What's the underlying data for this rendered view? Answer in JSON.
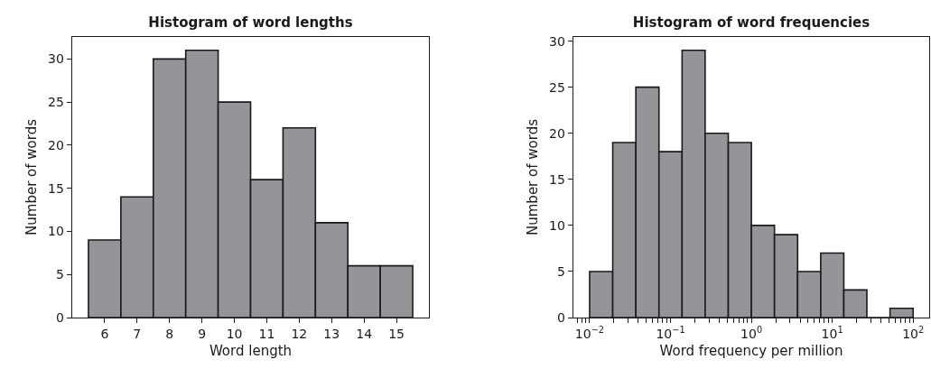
{
  "chart_data": [
    {
      "type": "histogram",
      "title": "Histogram of word lengths",
      "xlabel": "Word length",
      "ylabel": "Number of words",
      "bins": [
        5.5,
        6.5,
        7.5,
        8.5,
        9.5,
        10.5,
        11.5,
        12.5,
        13.5,
        14.5,
        15.5
      ],
      "values": [
        9,
        14,
        30,
        31,
        25,
        16,
        22,
        11,
        6,
        6
      ],
      "color": "#939598",
      "xlim": [
        5,
        16
      ],
      "xticks": [
        6,
        7,
        8,
        9,
        10,
        11,
        12,
        13,
        14,
        15
      ],
      "ylim": [
        0,
        32.55
      ],
      "yticks": [
        0,
        5,
        10,
        15,
        20,
        25,
        30
      ]
    },
    {
      "type": "histogram",
      "title": "Histogram of word frequencies",
      "xlabel": "Word frequency per million",
      "ylabel": "Number of words",
      "bins": [
        0.01,
        0.0193,
        0.0373,
        0.072,
        0.139,
        0.268,
        0.518,
        1,
        1.93,
        3.73,
        7.2,
        13.9,
        26.8,
        51.8,
        100
      ],
      "values": [
        5,
        19,
        25,
        18,
        29,
        20,
        19,
        10,
        9,
        5,
        7,
        3,
        0,
        1
      ],
      "color": "#939598",
      "log": "x",
      "xlim": [
        0.0063,
        158
      ],
      "xticks": [
        {
          "value": 0.007,
          "label": null
        },
        {
          "value": 0.008,
          "label": null
        },
        {
          "value": 0.009,
          "label": null
        },
        {
          "value": 0.01,
          "label": "10$^{−2}$"
        },
        {
          "value": 0.02,
          "label": null
        },
        {
          "value": 0.03,
          "label": null
        },
        {
          "value": 0.04,
          "label": null
        },
        {
          "value": 0.05,
          "label": null
        },
        {
          "value": 0.06,
          "label": null
        },
        {
          "value": 0.07,
          "label": null
        },
        {
          "value": 0.08,
          "label": null
        },
        {
          "value": 0.09,
          "label": null
        },
        {
          "value": 0.1,
          "label": "10$^{−1}$"
        },
        {
          "value": 0.2,
          "label": null
        },
        {
          "value": 0.3,
          "label": null
        },
        {
          "value": 0.4,
          "label": null
        },
        {
          "value": 0.5,
          "label": null
        },
        {
          "value": 0.6,
          "label": null
        },
        {
          "value": 0.7,
          "label": null
        },
        {
          "value": 0.8,
          "label": null
        },
        {
          "value": 0.9,
          "label": null
        },
        {
          "value": 1,
          "label": "10$^{0}$"
        },
        {
          "value": 2,
          "label": null
        },
        {
          "value": 3,
          "label": null
        },
        {
          "value": 4,
          "label": null
        },
        {
          "value": 5,
          "label": null
        },
        {
          "value": 6,
          "label": null
        },
        {
          "value": 7,
          "label": null
        },
        {
          "value": 8,
          "label": null
        },
        {
          "value": 9,
          "label": null
        },
        {
          "value": 10,
          "label": "10$^{1}$"
        },
        {
          "value": 20,
          "label": null
        },
        {
          "value": 30,
          "label": null
        },
        {
          "value": 40,
          "label": null
        },
        {
          "value": 50,
          "label": null
        },
        {
          "value": 60,
          "label": null
        },
        {
          "value": 70,
          "label": null
        },
        {
          "value": 80,
          "label": null
        },
        {
          "value": 90,
          "label": null
        },
        {
          "value": 100,
          "label": "10$^{2}$"
        }
      ],
      "ylim": [
        0,
        30.45
      ],
      "yticks": [
        0,
        5,
        10,
        15,
        20,
        25,
        30
      ]
    }
  ]
}
